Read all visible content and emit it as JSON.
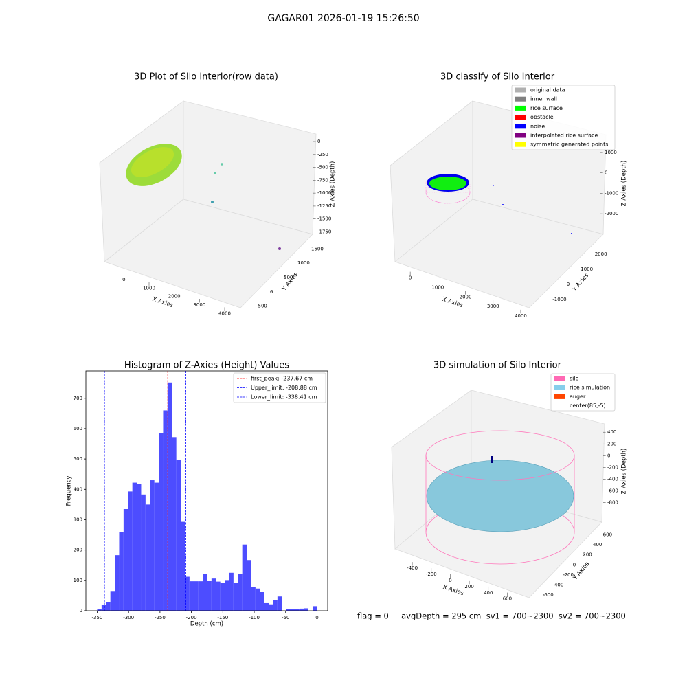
{
  "title": "GAGAR01 2026-01-19 15:26:50",
  "footer": "flag = 0     avgDepth = 295 cm  sv1 = 700~2300  sv2 = 700~2300",
  "chart_data": [
    {
      "type": "scatter3d",
      "title": "3D Plot of Silo Interior(row data)",
      "xlabel": "X Axies",
      "ylabel": "Y Axies",
      "zlabel": "Z Axies (Depth)",
      "xlim": [
        -500,
        4300
      ],
      "xticks": [
        0,
        1000,
        2000,
        3000,
        4000
      ],
      "ylim": [
        -700,
        1700
      ],
      "yticks": [
        -500,
        0,
        500,
        1000,
        1500
      ],
      "zlim": [
        -1850,
        80
      ],
      "zticks": [
        0,
        -250,
        -500,
        -750,
        -1000,
        -1250,
        -1500,
        -1750
      ]
    },
    {
      "type": "scatter3d",
      "title": "3D classify of Silo Interior",
      "xlabel": "X Axies",
      "ylabel": "Y Axies",
      "zlabel": "Z Axies (Depth)",
      "xlim": [
        -700,
        4300
      ],
      "xticks": [
        0,
        1000,
        2000,
        3000,
        4000
      ],
      "ylim": [
        -1600,
        2600
      ],
      "yticks": [
        -1000,
        0,
        1000,
        2000
      ],
      "zlim": [
        -2600,
        1500
      ],
      "zticks": [
        1000,
        0,
        -1000,
        -2000
      ],
      "legend": [
        {
          "name": "original data",
          "color": "#b0b0b0"
        },
        {
          "name": "inner wall",
          "color": "#808080"
        },
        {
          "name": "rice surface",
          "color": "#00ff00"
        },
        {
          "name": "obstacle",
          "color": "#ff0000"
        },
        {
          "name": "noise",
          "color": "#0000ff"
        },
        {
          "name": "interpolated rice surface",
          "color": "#800080"
        },
        {
          "name": "symmetric generated points",
          "color": "#ffff00"
        }
      ]
    },
    {
      "type": "histogram",
      "title": "Histogram of Z-Axies (Height) Values",
      "xlabel": "Depth (cm)",
      "ylabel": "Frequency",
      "color": "#4d4dff",
      "bins": [
        -350,
        -343,
        -336,
        -329,
        -322,
        -315,
        -308,
        -301,
        -294,
        -287,
        -280,
        -273,
        -266,
        -259,
        -252,
        -245,
        -238,
        -231,
        -224,
        -217,
        -210,
        -203,
        -196,
        -189,
        -182,
        -175,
        -168,
        -161,
        -154,
        -147,
        -140,
        -133,
        -126,
        -119,
        -112,
        -105,
        -98,
        -91,
        -84,
        -77,
        -70,
        -63,
        -56,
        -49,
        -42,
        -35,
        -28,
        -21,
        -14,
        -7,
        0
      ],
      "values": [
        5,
        20,
        28,
        65,
        183,
        260,
        335,
        393,
        422,
        418,
        383,
        350,
        430,
        422,
        585,
        660,
        752,
        572,
        498,
        293,
        112,
        97,
        97,
        97,
        122,
        98,
        106,
        96,
        92,
        101,
        125,
        92,
        120,
        218,
        167,
        78,
        73,
        63,
        25,
        21,
        35,
        47,
        0,
        5,
        5,
        5,
        7,
        8,
        0,
        15
      ],
      "xlim": [
        -368,
        17
      ],
      "xticks": [
        -350,
        -300,
        -250,
        -200,
        -150,
        -100,
        -50,
        0
      ],
      "ylim": [
        0,
        790
      ],
      "yticks": [
        0,
        100,
        200,
        300,
        400,
        500,
        600,
        700
      ],
      "lines": [
        {
          "name": "first_peak: -237.67 cm",
          "value": -237.67,
          "color": "#ff0000"
        },
        {
          "name": "Upper_limit: -208.88 cm",
          "value": -208.88,
          "color": "#0000ff"
        },
        {
          "name": "Lower_limit: -338.41 cm",
          "value": -338.41,
          "color": "#0000ff"
        }
      ]
    },
    {
      "type": "scatter3d",
      "title": "3D simulation of Silo Interior",
      "xlabel": "X Axies",
      "ylabel": "Y Axies",
      "zlabel": "Z Axies (Depth)",
      "xlim": [
        -560,
        720
      ],
      "xticks": [
        -400,
        -200,
        0,
        200,
        400,
        600
      ],
      "ylim": [
        -720,
        700
      ],
      "yticks": [
        -600,
        -400,
        -200,
        0,
        200,
        400,
        600
      ],
      "zlim": [
        -900,
        520
      ],
      "zticks": [
        400,
        200,
        0,
        -200,
        -400,
        -600,
        -800
      ],
      "legend": [
        {
          "name": "silo",
          "color": "#ff69b4"
        },
        {
          "name": "rice simulation",
          "color": "#87ceeb"
        },
        {
          "name": "auger",
          "color": "#ff4500"
        },
        {
          "name": "center(85,-5)",
          "color": "#ffffff"
        }
      ]
    }
  ]
}
